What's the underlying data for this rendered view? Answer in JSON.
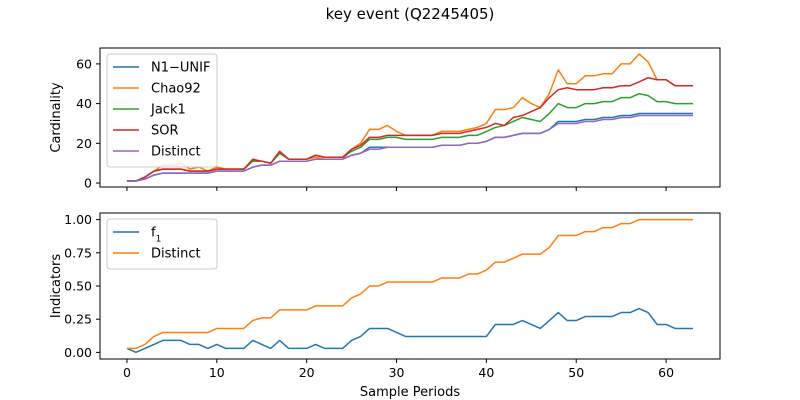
{
  "figure": {
    "title": "key event (Q2245405)"
  },
  "chart_data": [
    {
      "type": "line",
      "ylabel": "Cardinality",
      "xlabel": "",
      "xlim": [
        -3,
        66
      ],
      "ylim": [
        -2,
        68
      ],
      "xticks": [
        0,
        10,
        20,
        30,
        40,
        50,
        60
      ],
      "yticks": [
        0,
        20,
        40,
        60
      ],
      "ytick_labels": [
        "0",
        "20",
        "40",
        "60"
      ],
      "show_xtick_labels": false,
      "legend_position": "upper-left",
      "x": [
        0,
        1,
        2,
        3,
        4,
        5,
        6,
        7,
        8,
        9,
        10,
        11,
        12,
        13,
        14,
        15,
        16,
        17,
        18,
        19,
        20,
        21,
        22,
        23,
        24,
        25,
        26,
        27,
        28,
        29,
        30,
        31,
        32,
        33,
        34,
        35,
        36,
        37,
        38,
        39,
        40,
        41,
        42,
        43,
        44,
        45,
        46,
        47,
        48,
        49,
        50,
        51,
        52,
        53,
        54,
        55,
        56,
        57,
        58,
        59,
        60,
        61,
        62,
        63
      ],
      "series": [
        {
          "name": "N1−UNIF",
          "color": "#1f77b4",
          "values": [
            1,
            1,
            2,
            4,
            5,
            5,
            5,
            5,
            5,
            5,
            6,
            6,
            6,
            6,
            8,
            9,
            9,
            11,
            11,
            11,
            11,
            12,
            12,
            12,
            12,
            14,
            15,
            18,
            18,
            18,
            18,
            18,
            18,
            18,
            18,
            19,
            19,
            19,
            20,
            20,
            21,
            23,
            23,
            24,
            25,
            25,
            25,
            27,
            31,
            31,
            31,
            32,
            32,
            33,
            33,
            34,
            34,
            35,
            35,
            35,
            35,
            35,
            35,
            35
          ]
        },
        {
          "name": "Chao92",
          "color": "#ff7f0e",
          "values": [
            1,
            1,
            3,
            6,
            9,
            9,
            10,
            7,
            8,
            6,
            8,
            7,
            7,
            7,
            11,
            11,
            10,
            15,
            12,
            12,
            12,
            13,
            12,
            12,
            12,
            17,
            20,
            27,
            27,
            29,
            26,
            24,
            24,
            24,
            24,
            26,
            26,
            26,
            27,
            28,
            30,
            37,
            37,
            38,
            43,
            40,
            38,
            45,
            57,
            50,
            50,
            54,
            54,
            55,
            55,
            60,
            60,
            65,
            61,
            52,
            52,
            49,
            49,
            49
          ]
        },
        {
          "name": "Jack1",
          "color": "#2ca02c",
          "values": [
            1,
            1,
            3,
            6,
            7,
            7,
            7,
            6,
            6,
            6,
            7,
            7,
            7,
            7,
            11,
            11,
            10,
            15,
            12,
            12,
            12,
            14,
            13,
            13,
            13,
            16,
            18,
            22,
            22,
            23,
            23,
            22,
            22,
            22,
            22,
            23,
            23,
            23,
            24,
            24,
            26,
            28,
            29,
            31,
            33,
            32,
            31,
            35,
            40,
            38,
            38,
            40,
            40,
            41,
            41,
            43,
            43,
            45,
            44,
            41,
            41,
            40,
            40,
            40
          ]
        },
        {
          "name": "SOR",
          "color": "#d62728",
          "values": [
            1,
            1,
            3,
            6,
            7,
            7,
            7,
            6,
            6,
            6,
            7,
            7,
            7,
            7,
            12,
            11,
            10,
            16,
            12,
            12,
            12,
            14,
            13,
            13,
            13,
            17,
            19,
            23,
            23,
            24,
            24,
            24,
            24,
            24,
            24,
            25,
            25,
            25,
            26,
            27,
            28,
            30,
            29,
            33,
            34,
            36,
            38,
            43,
            47,
            48,
            47,
            47,
            47,
            48,
            48,
            49,
            49,
            51,
            53,
            52,
            52,
            49,
            49,
            49
          ]
        },
        {
          "name": "Distinct",
          "color": "#9467bd",
          "values": [
            1,
            1,
            2,
            4,
            5,
            5,
            5,
            5,
            5,
            5,
            6,
            6,
            6,
            6,
            8,
            9,
            9,
            11,
            11,
            11,
            11,
            12,
            12,
            12,
            12,
            14,
            15,
            17,
            17,
            18,
            18,
            18,
            18,
            18,
            18,
            19,
            19,
            19,
            20,
            20,
            21,
            23,
            23,
            24,
            25,
            25,
            25,
            27,
            30,
            30,
            30,
            31,
            31,
            32,
            32,
            33,
            33,
            34,
            34,
            34,
            34,
            34,
            34,
            34
          ]
        }
      ]
    },
    {
      "type": "line",
      "ylabel": "Indicators",
      "xlabel": "Sample Periods",
      "xlim": [
        -3,
        66
      ],
      "ylim": [
        -0.05,
        1.05
      ],
      "xticks": [
        0,
        10,
        20,
        30,
        40,
        50,
        60
      ],
      "xtick_labels": [
        "0",
        "10",
        "20",
        "30",
        "40",
        "50",
        "60"
      ],
      "yticks": [
        0,
        0.25,
        0.5,
        0.75,
        1.0
      ],
      "ytick_labels": [
        "0.00",
        "0.25",
        "0.50",
        "0.75",
        "1.00"
      ],
      "legend_position": "upper-left",
      "x": [
        0,
        1,
        2,
        3,
        4,
        5,
        6,
        7,
        8,
        9,
        10,
        11,
        12,
        13,
        14,
        15,
        16,
        17,
        18,
        19,
        20,
        21,
        22,
        23,
        24,
        25,
        26,
        27,
        28,
        29,
        30,
        31,
        32,
        33,
        34,
        35,
        36,
        37,
        38,
        39,
        40,
        41,
        42,
        43,
        44,
        45,
        46,
        47,
        48,
        49,
        50,
        51,
        52,
        53,
        54,
        55,
        56,
        57,
        58,
        59,
        60,
        61,
        62,
        63
      ],
      "series": [
        {
          "name": "f",
          "name_sub": "1",
          "color": "#1f77b4",
          "values": [
            0.03,
            0.0,
            0.03,
            0.06,
            0.09,
            0.09,
            0.09,
            0.06,
            0.06,
            0.03,
            0.06,
            0.03,
            0.03,
            0.03,
            0.09,
            0.06,
            0.03,
            0.09,
            0.03,
            0.03,
            0.03,
            0.06,
            0.03,
            0.03,
            0.03,
            0.09,
            0.12,
            0.18,
            0.18,
            0.18,
            0.15,
            0.12,
            0.12,
            0.12,
            0.12,
            0.12,
            0.12,
            0.12,
            0.12,
            0.12,
            0.12,
            0.21,
            0.21,
            0.21,
            0.24,
            0.21,
            0.18,
            0.24,
            0.3,
            0.24,
            0.24,
            0.27,
            0.27,
            0.27,
            0.27,
            0.3,
            0.3,
            0.33,
            0.3,
            0.21,
            0.21,
            0.18,
            0.18,
            0.18
          ]
        },
        {
          "name": "Distinct",
          "color": "#ff7f0e",
          "values": [
            0.03,
            0.03,
            0.06,
            0.12,
            0.15,
            0.15,
            0.15,
            0.15,
            0.15,
            0.15,
            0.18,
            0.18,
            0.18,
            0.18,
            0.24,
            0.26,
            0.26,
            0.32,
            0.32,
            0.32,
            0.32,
            0.35,
            0.35,
            0.35,
            0.35,
            0.41,
            0.44,
            0.5,
            0.5,
            0.53,
            0.53,
            0.53,
            0.53,
            0.53,
            0.53,
            0.56,
            0.56,
            0.56,
            0.59,
            0.59,
            0.62,
            0.68,
            0.68,
            0.71,
            0.74,
            0.74,
            0.74,
            0.79,
            0.88,
            0.88,
            0.88,
            0.91,
            0.91,
            0.94,
            0.94,
            0.97,
            0.97,
            1.0,
            1.0,
            1.0,
            1.0,
            1.0,
            1.0,
            1.0
          ]
        }
      ]
    }
  ]
}
